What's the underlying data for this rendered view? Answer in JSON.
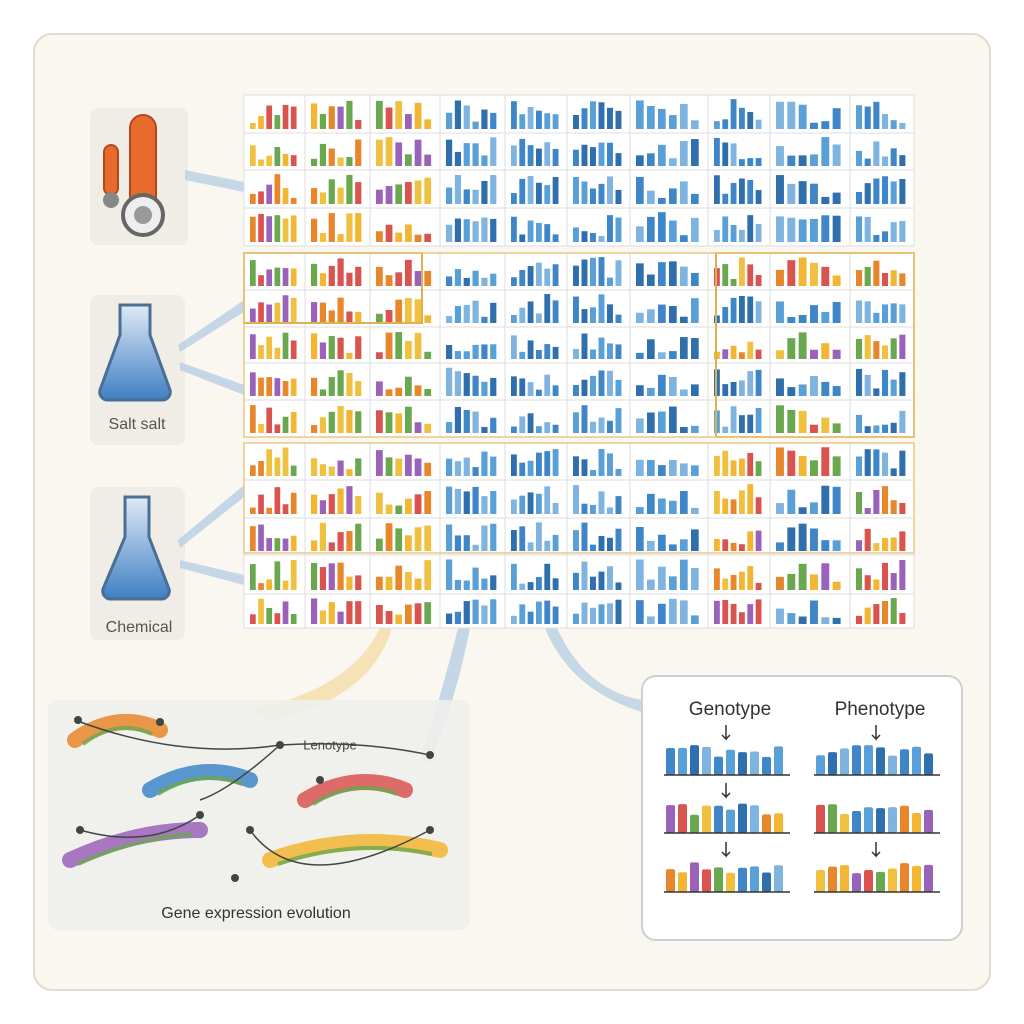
{
  "inputs": [
    {
      "label": "Salt salt"
    },
    {
      "label": "Chemical"
    }
  ],
  "evolution_panel": {
    "title": "Gene expression evolution",
    "overlay_label": "Lenotype"
  },
  "comparison_panel": {
    "left_title": "Genotype",
    "right_title": "Phenotype"
  }
}
